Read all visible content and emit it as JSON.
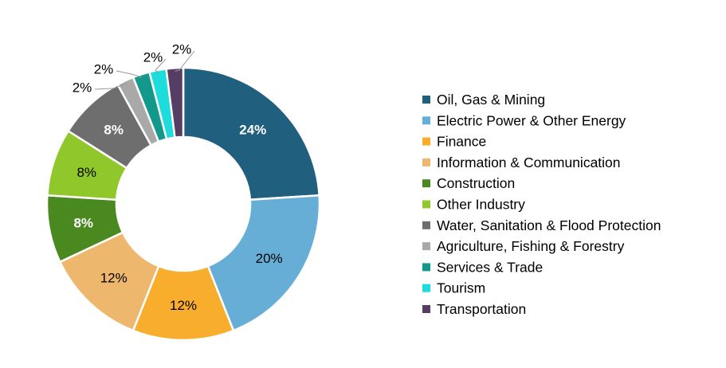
{
  "chart_data": {
    "type": "pie",
    "donut": true,
    "title": "",
    "legend_position": "right",
    "slices": [
      {
        "name": "Oil, Gas & Mining",
        "value": 24,
        "label": "24%",
        "color": "#215f7f",
        "label_color": "#ffffff",
        "bold": true
      },
      {
        "name": "Electric Power & Other Energy",
        "value": 20,
        "label": "20%",
        "color": "#66aed6",
        "label_color": "#000000",
        "bold": false
      },
      {
        "name": "Finance",
        "value": 12,
        "label": "12%",
        "color": "#f9ad2c",
        "label_color": "#000000",
        "bold": false
      },
      {
        "name": "Information & Communication",
        "value": 12,
        "label": "12%",
        "color": "#eeb76e",
        "label_color": "#000000",
        "bold": false
      },
      {
        "name": "Construction",
        "value": 8,
        "label": "8%",
        "color": "#4a891f",
        "label_color": "#ffffff",
        "bold": true
      },
      {
        "name": "Other Industry",
        "value": 8,
        "label": "8%",
        "color": "#90c72b",
        "label_color": "#000000",
        "bold": false
      },
      {
        "name": "Water, Sanitation & Flood Protection",
        "value": 8,
        "label": "8%",
        "color": "#6e6e6e",
        "label_color": "#ffffff",
        "bold": true
      },
      {
        "name": "Agriculture, Fishing & Forestry",
        "value": 2,
        "label": "2%",
        "color": "#a9a9a9",
        "label_color": "#000000",
        "bold": false
      },
      {
        "name": "Services & Trade",
        "value": 2,
        "label": "2%",
        "color": "#13998b",
        "label_color": "#000000",
        "bold": false
      },
      {
        "name": "Tourism",
        "value": 2,
        "label": "2%",
        "color": "#1fdcdc",
        "label_color": "#000000",
        "bold": false
      },
      {
        "name": "Transportation",
        "value": 2,
        "label": "2%",
        "color": "#553d64",
        "label_color": "#000000",
        "bold": false
      }
    ]
  }
}
